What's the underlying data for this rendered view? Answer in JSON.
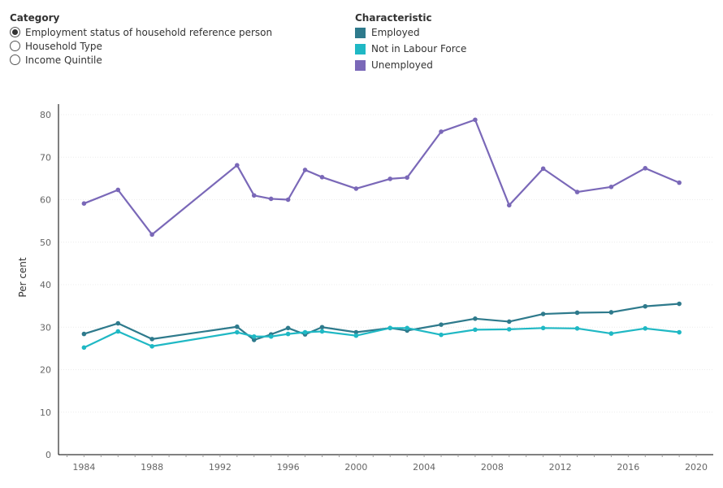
{
  "category_panel": {
    "title": "Category",
    "options": [
      {
        "label": "Employment status of household reference person",
        "selected": true
      },
      {
        "label": "Household Type",
        "selected": false
      },
      {
        "label": "Income Quintile",
        "selected": false
      }
    ]
  },
  "legend_panel": {
    "title": "Characteristic",
    "items": [
      {
        "label": "Employed",
        "color": "#2e7a8c"
      },
      {
        "label": "Not in Labour Force",
        "color": "#1fb8c4"
      },
      {
        "label": "Unemployed",
        "color": "#7a68b8"
      }
    ]
  },
  "chart_data": {
    "type": "line",
    "ylabel": "Per cent",
    "xlabel": "",
    "ylim": [
      0,
      80
    ],
    "yticks": [
      0,
      10,
      20,
      30,
      40,
      50,
      60,
      70,
      80
    ],
    "xlim": [
      1982.5,
      2021
    ],
    "xticks": [
      1984,
      1988,
      1992,
      1996,
      2000,
      2004,
      2008,
      2012,
      2016,
      2020
    ],
    "x": [
      1984,
      1986,
      1988,
      1993,
      1994,
      1995,
      1996,
      1997,
      1998,
      2000,
      2002,
      2003,
      2005,
      2007,
      2009,
      2011,
      2013,
      2015,
      2017,
      2019
    ],
    "series": [
      {
        "name": "Employed",
        "color": "#2e7a8c",
        "values": [
          28.4,
          30.9,
          27.2,
          30.1,
          27.0,
          28.3,
          29.8,
          28.3,
          30.0,
          28.8,
          29.8,
          29.2,
          30.6,
          32.0,
          31.3,
          33.1,
          33.4,
          33.5,
          34.9,
          35.5
        ]
      },
      {
        "name": "Not in Labour Force",
        "color": "#1fb8c4",
        "values": [
          25.2,
          29.0,
          25.5,
          28.8,
          27.8,
          27.8,
          28.4,
          28.8,
          29.0,
          28.0,
          29.8,
          29.8,
          28.2,
          29.4,
          29.5,
          29.8,
          29.7,
          28.5,
          29.7,
          28.8
        ]
      },
      {
        "name": "Unemployed",
        "color": "#7a68b8",
        "values": [
          59.1,
          62.3,
          51.8,
          68.1,
          61.0,
          60.2,
          60.0,
          67.0,
          65.3,
          62.6,
          64.9,
          65.2,
          76.0,
          78.8,
          58.7,
          67.3,
          61.8,
          63.0,
          67.4,
          64.0
        ]
      }
    ]
  }
}
